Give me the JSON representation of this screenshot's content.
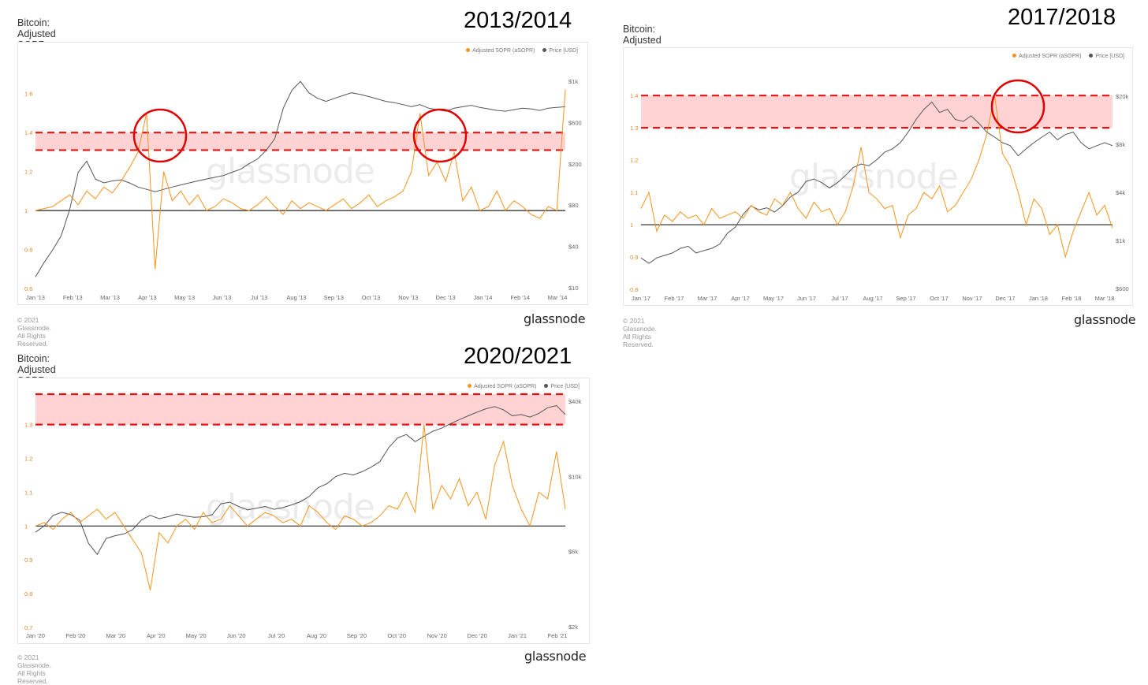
{
  "brand": "glassnode",
  "copyright": "© 2021 Glassnode. All Rights Reserved.",
  "watermark": "glassnode",
  "colors": {
    "asopr": "#f7931a",
    "price": "#555555",
    "band_fill": "#ffc4c4",
    "band_line": "#ee1111",
    "circle": "#e00000",
    "baseline": "#222222"
  },
  "chart_data": [
    {
      "type": "line",
      "period": "2013/2014",
      "title": "Bitcoin: Adjusted SOPR (aSOPR) (24h Moving Average)",
      "legend": [
        "Adjusted SOPR (aSOPR)",
        "Price [USD]"
      ],
      "x_ticks": [
        "Jan '13",
        "Feb '13",
        "Mar '13",
        "Apr '13",
        "May '13",
        "Jun '13",
        "Jul '13",
        "Aug '13",
        "Sep '13",
        "Oct '13",
        "Nov '13",
        "Dec '13",
        "Jan '14",
        "Feb '14",
        "Mar '14"
      ],
      "y_left_ticks": [
        "0.6",
        "0.8",
        "1",
        "1.2",
        "1.4",
        "1.6"
      ],
      "y_left_range": [
        0.6,
        1.7
      ],
      "y_right_ticks": [
        "$10",
        "$40",
        "$80",
        "$200",
        "$600",
        "$1k"
      ],
      "band": [
        1.31,
        1.4
      ],
      "baseline": 1,
      "asopr": [
        1.0,
        1.01,
        1.02,
        1.05,
        1.08,
        1.03,
        1.1,
        1.06,
        1.12,
        1.09,
        1.15,
        1.22,
        1.3,
        1.5,
        0.7,
        1.2,
        1.05,
        1.1,
        1.03,
        1.08,
        1.0,
        1.02,
        1.06,
        1.04,
        1.01,
        1.0,
        1.03,
        1.07,
        1.02,
        0.98,
        1.05,
        1.01,
        1.04,
        1.02,
        1.0,
        1.03,
        1.06,
        1.01,
        1.04,
        1.08,
        1.02,
        1.05,
        1.07,
        1.1,
        1.2,
        1.5,
        1.18,
        1.25,
        1.15,
        1.3,
        1.05,
        1.12,
        1.0,
        1.02,
        1.1,
        1.0,
        1.05,
        1.02,
        0.98,
        0.96,
        1.02,
        1.0,
        1.62
      ],
      "price": [
        13,
        18,
        24,
        33,
        60,
        140,
        180,
        120,
        110,
        115,
        118,
        110,
        100,
        95,
        90,
        95,
        100,
        105,
        110,
        115,
        120,
        125,
        130,
        140,
        150,
        170,
        190,
        230,
        300,
        600,
        900,
        1100,
        850,
        750,
        700,
        750,
        800,
        850,
        820,
        780,
        740,
        700,
        680,
        650,
        620,
        650,
        600,
        580,
        560,
        600,
        620,
        640,
        610,
        590,
        570,
        560,
        580,
        600,
        590,
        570,
        600,
        610,
        620
      ],
      "price_range": [
        10,
        1300
      ]
    },
    {
      "type": "line",
      "period": "2017/2018",
      "title": "Bitcoin: Adjusted SOPR (aSOPR) (24h Moving Average)",
      "legend": [
        "Adjusted SOPR (aSOPR)",
        "Price [USD]"
      ],
      "x_ticks": [
        "Jan '17",
        "Feb '17",
        "Mar '17",
        "Apr '17",
        "May '17",
        "Jun '17",
        "Jul '17",
        "Aug '17",
        "Sep '17",
        "Oct '17",
        "Nov '17",
        "Dec '17",
        "Jan '18",
        "Feb '18",
        "Mar '18"
      ],
      "y_left_ticks": [
        "0.8",
        "0.9",
        "1",
        "1.1",
        "1.2",
        "1.3",
        "1.4"
      ],
      "y_left_range": [
        0.8,
        1.42
      ],
      "y_right_ticks": [
        "$600",
        "$1k",
        "$4k",
        "$8k",
        "$20k"
      ],
      "band": [
        1.3,
        1.4
      ],
      "baseline": 1,
      "asopr": [
        1.05,
        1.1,
        0.98,
        1.03,
        1.01,
        1.04,
        1.02,
        1.03,
        1.0,
        1.05,
        1.02,
        1.03,
        1.04,
        1.02,
        1.06,
        1.04,
        1.03,
        1.08,
        1.06,
        1.1,
        1.05,
        1.02,
        1.07,
        1.04,
        1.05,
        1.0,
        1.04,
        1.12,
        1.24,
        1.1,
        1.08,
        1.05,
        1.06,
        0.96,
        1.03,
        1.05,
        1.1,
        1.08,
        1.12,
        1.04,
        1.06,
        1.1,
        1.14,
        1.2,
        1.28,
        1.4,
        1.22,
        1.18,
        1.1,
        1.0,
        1.08,
        1.05,
        0.97,
        1.0,
        0.9,
        0.98,
        1.04,
        1.1,
        1.03,
        1.06,
        0.99
      ],
      "price": [
        1000,
        900,
        1000,
        1050,
        1100,
        1200,
        1250,
        1100,
        1150,
        1200,
        1300,
        1600,
        1800,
        2300,
        2700,
        2500,
        2600,
        2400,
        2700,
        3200,
        3500,
        4300,
        4500,
        4200,
        3800,
        4200,
        4800,
        5600,
        6000,
        5800,
        6500,
        7500,
        8000,
        9000,
        11000,
        14000,
        17000,
        19500,
        16000,
        17000,
        14000,
        13500,
        15000,
        13000,
        11000,
        10000,
        9000,
        8500,
        7000,
        8000,
        9000,
        10000,
        11000,
        9500,
        10500,
        11000,
        9000,
        8000,
        8500,
        9000,
        8500
      ],
      "price_range": [
        550,
        25000
      ]
    },
    {
      "type": "line",
      "period": "2020/2021",
      "title": "Bitcoin: Adjusted SOPR (aSOPR) (24h Moving Average)",
      "legend": [
        "Adjusted SOPR (aSOPR)",
        "Price [USD]"
      ],
      "x_ticks": [
        "Jan '20",
        "Feb '20",
        "Mar '20",
        "Apr '20",
        "May '20",
        "Jun '20",
        "Jul '20",
        "Aug '20",
        "Sep '20",
        "Oct '20",
        "Nov '20",
        "Dec '20",
        "Jan '21",
        "Feb '21"
      ],
      "y_left_ticks": [
        "0.7",
        "0.8",
        "0.9",
        "1",
        "1.1",
        "1.2",
        "1.3"
      ],
      "y_left_range": [
        0.7,
        1.39
      ],
      "y_right_ticks": [
        "$2k",
        "$6k",
        "$10k",
        "$40k"
      ],
      "band": [
        1.3,
        1.39
      ],
      "baseline": 1,
      "asopr": [
        1.0,
        1.01,
        0.99,
        1.02,
        1.04,
        1.01,
        1.03,
        1.05,
        1.02,
        1.04,
        1.0,
        0.96,
        0.92,
        0.81,
        0.98,
        0.95,
        1.0,
        1.02,
        0.99,
        1.04,
        1.01,
        1.02,
        1.06,
        1.03,
        1.0,
        1.02,
        1.04,
        1.03,
        1.01,
        1.02,
        1.0,
        1.06,
        1.04,
        1.01,
        0.99,
        1.03,
        1.02,
        1.0,
        1.01,
        1.03,
        1.06,
        1.05,
        1.1,
        1.04,
        1.3,
        1.05,
        1.12,
        1.08,
        1.14,
        1.06,
        1.1,
        1.02,
        1.18,
        1.25,
        1.12,
        1.05,
        1.0,
        1.1,
        1.08,
        1.22,
        1.05
      ],
      "price": [
        7200,
        8000,
        9500,
        10000,
        9600,
        8800,
        6000,
        5000,
        6500,
        6800,
        7000,
        7500,
        8800,
        9500,
        9000,
        9300,
        9700,
        9400,
        9200,
        9300,
        9600,
        11500,
        11800,
        11000,
        10400,
        10700,
        11000,
        10500,
        10800,
        11300,
        11900,
        13000,
        15000,
        16000,
        18000,
        19000,
        18500,
        19500,
        21000,
        23000,
        29000,
        34000,
        36000,
        32000,
        35000,
        38000,
        40000,
        43000,
        46000,
        49000,
        52000,
        55000,
        57000,
        54000,
        49000,
        50000,
        48000,
        51000,
        56000,
        58000,
        50000
      ],
      "price_range": [
        1500,
        70000
      ]
    }
  ]
}
